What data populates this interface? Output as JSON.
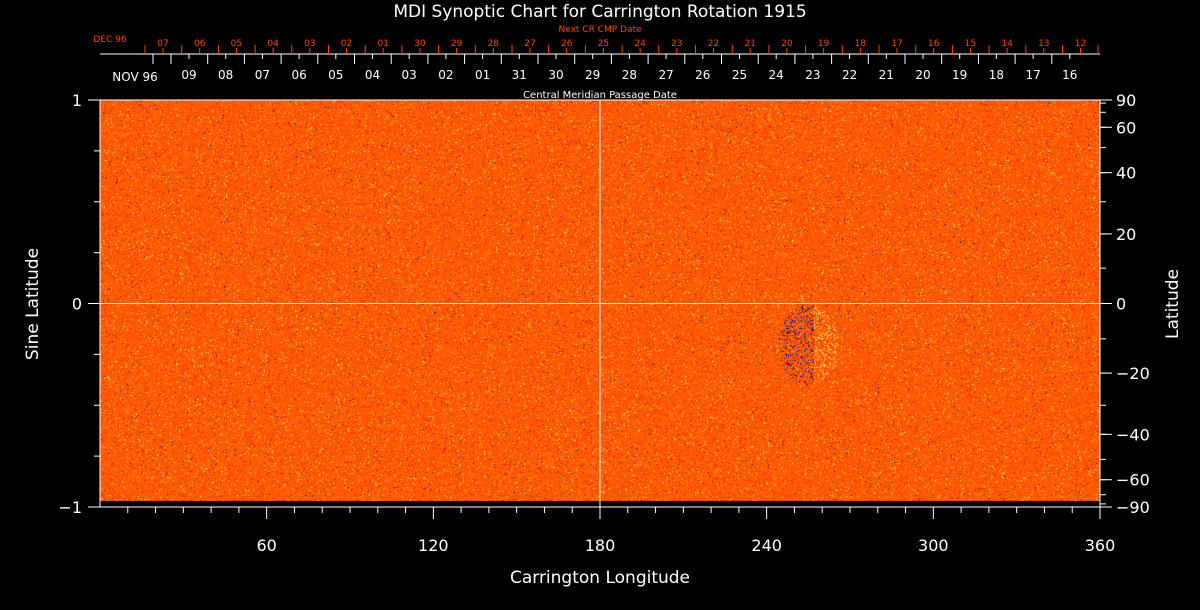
{
  "chart_data": {
    "type": "heatmap",
    "title": "MDI Synoptic Chart for Carrington Rotation 1915",
    "xlabel": "Carrington Longitude",
    "ylabel_left": "Sine Latitude",
    "ylabel_right": "Latitude",
    "xlim": [
      0,
      360
    ],
    "ylim": [
      -1,
      1
    ],
    "x_ticks": [
      60,
      120,
      180,
      240,
      300,
      360
    ],
    "y_ticks_left": [
      {
        "v": 1,
        "label": "1"
      },
      {
        "v": 0,
        "label": "0"
      },
      {
        "v": -1,
        "label": "−1"
      }
    ],
    "y_ticks_right": [
      90,
      60,
      40,
      20,
      0,
      -20,
      -40,
      -60,
      -90
    ],
    "gridlines": {
      "longitude": 180,
      "sine_latitude": 0
    },
    "top_axis_next_cr": {
      "title": "Next CR CMP Date",
      "month_label": "DEC 96",
      "labels": [
        "07",
        "06",
        "05",
        "04",
        "03",
        "02",
        "01",
        "30",
        "29",
        "28",
        "27",
        "26",
        "25",
        "24",
        "23",
        "22",
        "21",
        "20",
        "19",
        "18",
        "17",
        "16",
        "15",
        "14",
        "13",
        "12"
      ]
    },
    "top_axis_cmp": {
      "title": "Central Meridian Passage Date",
      "month_label": "NOV 96",
      "labels": [
        "09",
        "08",
        "07",
        "06",
        "05",
        "04",
        "03",
        "02",
        "01",
        "31",
        "30",
        "29",
        "28",
        "27",
        "26",
        "25",
        "24",
        "23",
        "22",
        "21",
        "20",
        "19",
        "18",
        "17",
        "16"
      ]
    },
    "features": [
      {
        "name": "active region",
        "longitude": 255,
        "sine_latitude": -0.2
      }
    ],
    "colors": {
      "background": "#000000",
      "field_base": "#ff4a00",
      "positive": "#ffff80",
      "negative": "#1010a0",
      "axis": "#ffffff",
      "next_cr_axis": "#ff4500"
    }
  }
}
